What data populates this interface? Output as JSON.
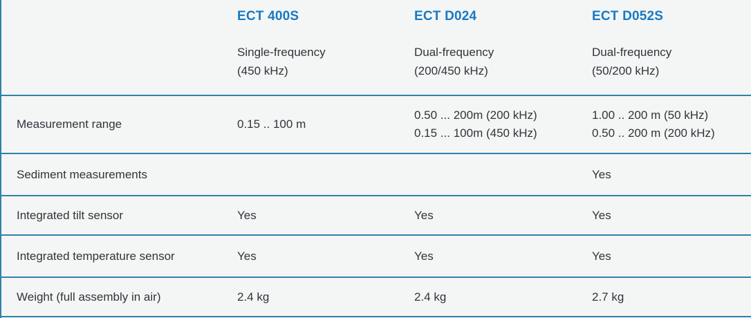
{
  "theme": {
    "background_color": "#f4f6f5",
    "rule_color": "#2e81aa",
    "heading_color": "#1779c4",
    "text_color": "#30343a"
  },
  "table": {
    "products": [
      {
        "name": "ECT 400S",
        "subtitle": "Single-frequency\n(450 kHz)"
      },
      {
        "name": "ECT D024",
        "subtitle": "Dual-frequency\n(200/450 kHz)"
      },
      {
        "name": "ECT D052S",
        "subtitle": "Dual-frequency\n(50/200 kHz)"
      }
    ],
    "rows": [
      {
        "label": "Measurement range",
        "values": [
          "0.15 .. 100 m",
          "0.50 ... 200m (200 kHz)\n0.15 ... 100m (450 kHz)",
          "1.00 .. 200 m (50 kHz)\n0.50 .. 200 m (200 kHz)"
        ]
      },
      {
        "label": "Sediment measurements",
        "values": [
          "",
          "",
          "Yes"
        ]
      },
      {
        "label": "Integrated tilt sensor",
        "values": [
          "Yes",
          "Yes",
          "Yes"
        ]
      },
      {
        "label": "Integrated temperature sensor",
        "values": [
          "Yes",
          "Yes",
          "Yes"
        ]
      },
      {
        "label": "Weight (full assembly in air)",
        "values": [
          "2.4 kg",
          "2.4 kg",
          "2.7 kg"
        ]
      }
    ]
  }
}
